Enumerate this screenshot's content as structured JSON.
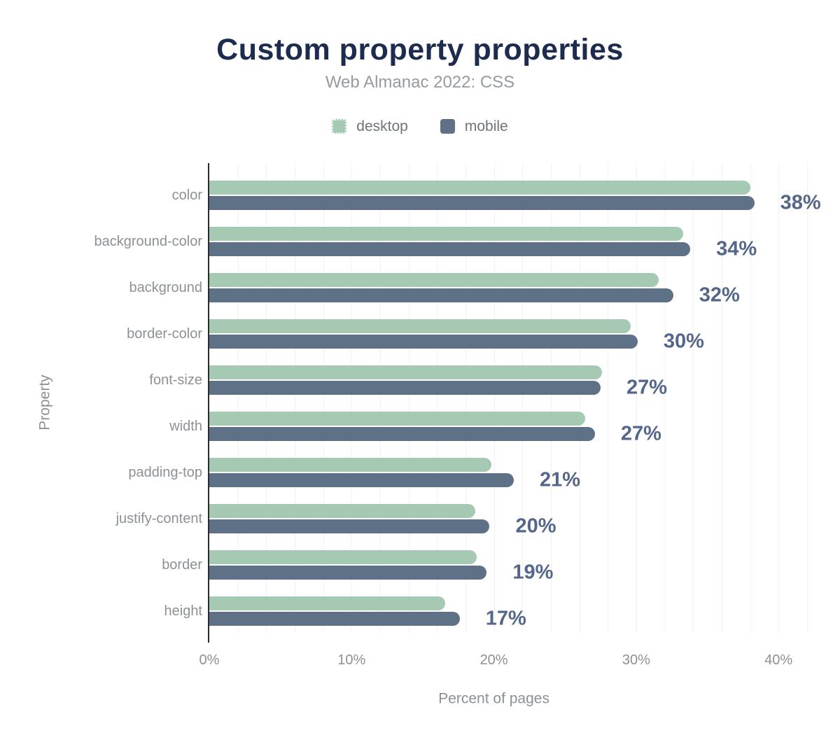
{
  "header": {
    "title": "Custom property properties",
    "subtitle": "Web Almanac 2022: CSS"
  },
  "legend": {
    "items": [
      {
        "label": "desktop",
        "color": "#a5c9b3"
      },
      {
        "label": "mobile",
        "color": "#5f7186"
      }
    ]
  },
  "chart_data": {
    "type": "bar",
    "orientation": "horizontal",
    "title": "Custom property properties",
    "subtitle": "Web Almanac 2022: CSS",
    "categories": [
      "color",
      "background-color",
      "background",
      "border-color",
      "font-size",
      "width",
      "padding-top",
      "justify-content",
      "border",
      "height"
    ],
    "series": [
      {
        "name": "desktop",
        "color": "#a5c9b3",
        "values": [
          38.0,
          33.3,
          31.6,
          29.6,
          27.6,
          26.4,
          19.8,
          18.7,
          18.8,
          16.6
        ]
      },
      {
        "name": "mobile",
        "color": "#5f7186",
        "values": [
          38.3,
          33.8,
          32.6,
          30.1,
          27.5,
          27.1,
          21.4,
          19.7,
          19.5,
          17.6
        ]
      }
    ],
    "data_labels": [
      "38%",
      "34%",
      "32%",
      "30%",
      "27%",
      "27%",
      "21%",
      "20%",
      "19%",
      "17%"
    ],
    "xlabel": "Percent of pages",
    "ylabel": "Property",
    "x_ticks": [
      "0%",
      "10%",
      "20%",
      "30%",
      "40%"
    ],
    "x_tick_values": [
      0,
      10,
      20,
      30,
      40
    ],
    "xlim": [
      0,
      42.5
    ],
    "grid_interval": 2,
    "grid": true,
    "legend_position": "top"
  },
  "colors": {
    "title": "#1c2b4e",
    "subtitle": "#969ba0",
    "axis_text": "#8c9196",
    "legend_text": "#6e747a",
    "data_label": "#54678a",
    "axis_line": "#2b2b2b",
    "gridline": "#f1f3f2",
    "desktop": "#a5c9b3",
    "mobile": "#5f7186",
    "background": "#ffffff"
  }
}
